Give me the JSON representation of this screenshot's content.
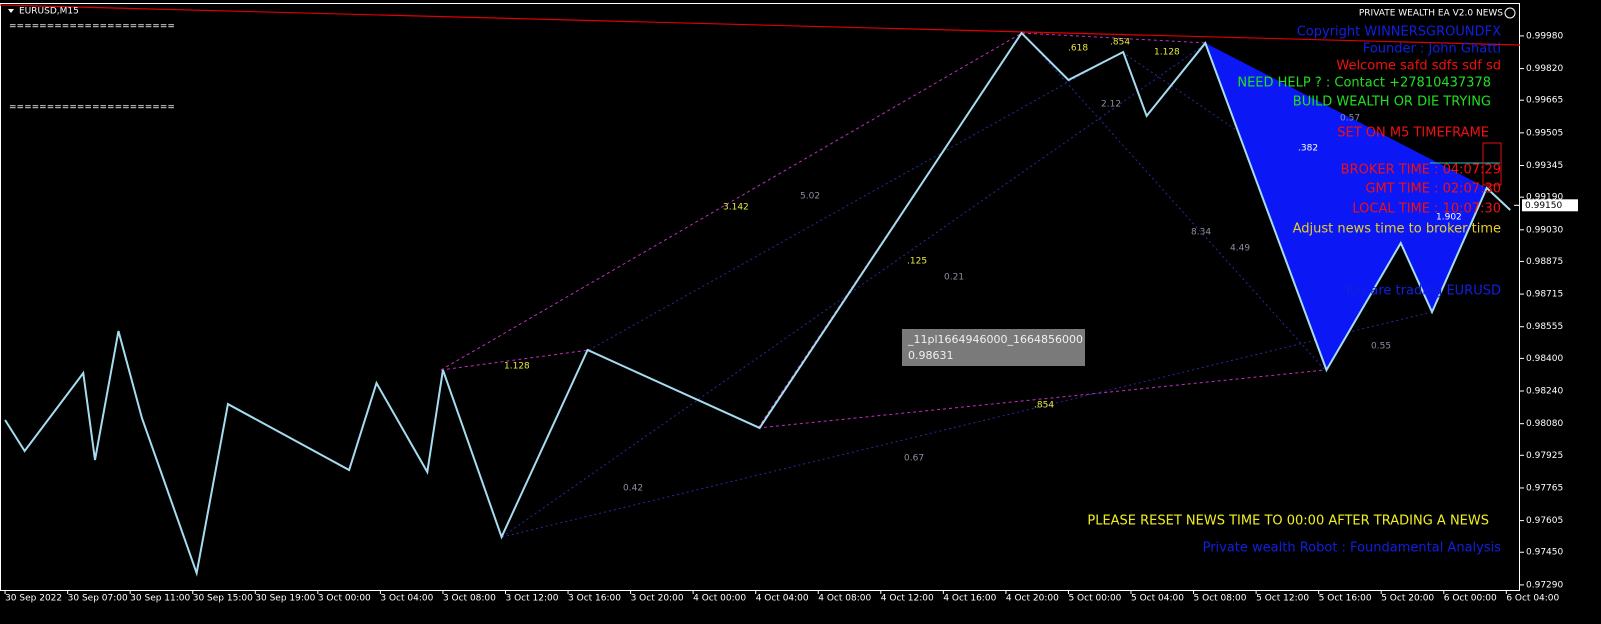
{
  "window": {
    "symbol": "EURUSD,M15",
    "separators": [
      "======================",
      "======================"
    ],
    "ea_title": "PRIVATE WEALTH  EA V2.0 NEWS"
  },
  "panel": {
    "copyright": "Copyright WINNERSGROUNDFX",
    "founder": "Founder : John Ghatti",
    "welcome": "Welcome safd    sdfs sdf  sd",
    "help": "NEED HELP ? : Contact +27810437378",
    "motto": "BUILD WEALTH OR DIE TRYING",
    "timeframe": "SET ON M5 TIMEFRAME",
    "broker_time": "BROKER TIME : 04:07:29",
    "gmt_time": "GMT TIME : 02:07:30",
    "local_time": "LOCAL TIME : 10:07:30",
    "adjust": "Adjust news time to broker time",
    "trading": "You are trading EURUSD",
    "reset_notice": "PLEASE RESET NEWS TIME TO 00:00 AFTER TRADING A NEWS",
    "banner": "Private wealth Robot : Foundamental Analysis"
  },
  "tooltip": {
    "id": "_11pl1664946000_1664856000",
    "price": "0.98631"
  },
  "fib_labels": [
    ".618",
    ".854",
    "1.128",
    "2.12",
    "0.57",
    ".382",
    "3.142",
    "5.02",
    ".125",
    "0.21",
    "8.34",
    "4.49",
    "1.128",
    "1.902",
    "0.55",
    ".854",
    "0.67",
    "0.42"
  ],
  "chart_data": {
    "type": "line",
    "color": "#a6dcf0",
    "x": [
      0,
      5,
      20,
      23,
      29,
      35,
      49,
      57,
      88,
      95,
      108,
      112,
      127,
      149,
      193,
      260,
      272,
      286,
      292,
      307,
      338,
      357,
      365,
      379,
      385
    ],
    "values": [
      0.98098,
      0.97946,
      0.98328,
      0.97902,
      0.98534,
      0.98108,
      0.97348,
      0.98176,
      0.97853,
      0.98279,
      0.97843,
      0.98343,
      0.97525,
      0.98441,
      0.98059,
      0.99994,
      0.99764,
      0.99901,
      0.99588,
      0.99945,
      0.98343,
      0.98965,
      0.98627,
      0.99235,
      0.99127
    ],
    "current_price": {
      "value": 0.9915,
      "label": "0.99150"
    },
    "xlim": [
      -1.3,
      387.5
    ],
    "ylim": [
      0.97265,
      1.00156
    ],
    "xticks": [
      {
        "value": 0,
        "label": "30 Sep 2022"
      },
      {
        "value": 16,
        "label": "30 Sep 07:00"
      },
      {
        "value": 32,
        "label": "30 Sep 11:00"
      },
      {
        "value": 48,
        "label": "30 Sep 15:00"
      },
      {
        "value": 64,
        "label": "30 Sep 19:00"
      },
      {
        "value": 80,
        "label": "3 Oct 00:00"
      },
      {
        "value": 96,
        "label": "3 Oct 04:00"
      },
      {
        "value": 112,
        "label": "3 Oct 08:00"
      },
      {
        "value": 128,
        "label": "3 Oct 12:00"
      },
      {
        "value": 144,
        "label": "3 Oct 16:00"
      },
      {
        "value": 160,
        "label": "3 Oct 20:00"
      },
      {
        "value": 176,
        "label": "4 Oct 00:00"
      },
      {
        "value": 192,
        "label": "4 Oct 04:00"
      },
      {
        "value": 208,
        "label": "4 Oct 08:00"
      },
      {
        "value": 224,
        "label": "4 Oct 12:00"
      },
      {
        "value": 240,
        "label": "4 Oct 16:00"
      },
      {
        "value": 256,
        "label": "4 Oct 20:00"
      },
      {
        "value": 272,
        "label": "5 Oct 00:00"
      },
      {
        "value": 288,
        "label": "5 Oct 04:00"
      },
      {
        "value": 304,
        "label": "5 Oct 08:00"
      },
      {
        "value": 320,
        "label": "5 Oct 12:00"
      },
      {
        "value": 336,
        "label": "5 Oct 16:00"
      },
      {
        "value": 352,
        "label": "5 Oct 20:00"
      },
      {
        "value": 368,
        "label": "6 Oct 00:00"
      },
      {
        "value": 384,
        "label": "6 Oct 04:00"
      }
    ],
    "yticks": [
      {
        "value": 0.9998,
        "label": "0.99980"
      },
      {
        "value": 0.9982,
        "label": "0.99820"
      },
      {
        "value": 0.99665,
        "label": "0.99665"
      },
      {
        "value": 0.99505,
        "label": "0.99505"
      },
      {
        "value": 0.99345,
        "label": "0.99345"
      },
      {
        "value": 0.9919,
        "label": "0.99190"
      },
      {
        "value": 0.9903,
        "label": "0.99030"
      },
      {
        "value": 0.98875,
        "label": "0.98875"
      },
      {
        "value": 0.98715,
        "label": "0.98715"
      },
      {
        "value": 0.98555,
        "label": "0.98555"
      },
      {
        "value": 0.984,
        "label": "0.98400"
      },
      {
        "value": 0.9824,
        "label": "0.98240"
      },
      {
        "value": 0.9808,
        "label": "0.98080"
      },
      {
        "value": 0.97925,
        "label": "0.97925"
      },
      {
        "value": 0.97765,
        "label": "0.97765"
      },
      {
        "value": 0.97605,
        "label": "0.97605"
      },
      {
        "value": 0.9745,
        "label": "0.97450"
      },
      {
        "value": 0.9729,
        "label": "0.97290"
      }
    ]
  }
}
